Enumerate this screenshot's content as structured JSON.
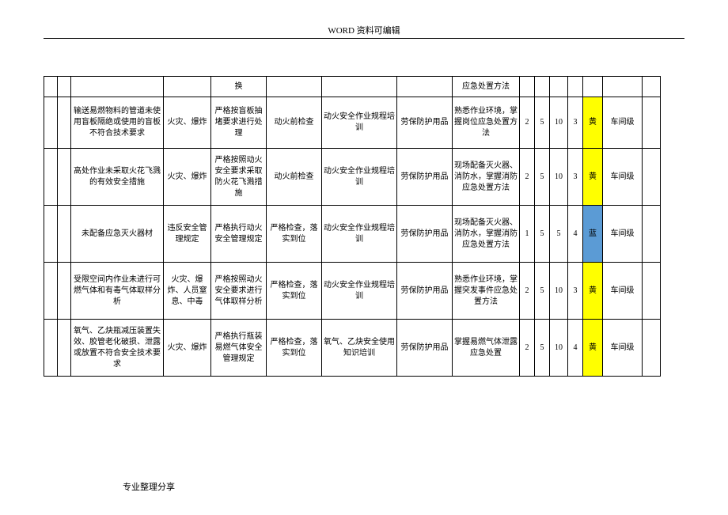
{
  "header": "WORD 资料可编辑",
  "footer": "专业整理分享",
  "colors": {
    "yellow": "#ffff00",
    "blue": "#5b9bd5"
  },
  "rows": [
    {
      "c2": "",
      "c3": "",
      "c4": "换",
      "c5": "",
      "c6": "",
      "c7": "",
      "c8": "应急处置方法",
      "c9": "",
      "c10": "",
      "c11": "",
      "c12": "",
      "c13": "",
      "c13_color": "",
      "c14": "",
      "c15": ""
    },
    {
      "c2": "输送易燃物料的管道未使用盲板隔绝或使用的盲板不符合技术要求",
      "c3": "火灾、爆炸",
      "c4": "严格按盲板抽堵要求进行处理",
      "c5": "动火前检查",
      "c6": "动火安全作业规程培训",
      "c7": "劳保防护用品",
      "c8": "熟悉作业环境，掌握岗位应急处置方法",
      "c9": "2",
      "c10": "5",
      "c11": "10",
      "c12": "3",
      "c13": "黄",
      "c13_color": "yellow",
      "c14": "车间级",
      "c15": ""
    },
    {
      "c2": "高处作业未采取火花飞溅的有效安全措施",
      "c3": "火灾、爆炸",
      "c4": "严格按照动火安全要求采取防火花飞溅措施",
      "c5": "动火前检查",
      "c6": "动火安全作业规程培训",
      "c7": "劳保防护用品",
      "c8": "现场配备灭火器、消防水，掌握消防应急处置方法",
      "c9": "2",
      "c10": "5",
      "c11": "10",
      "c12": "3",
      "c13": "黄",
      "c13_color": "yellow",
      "c14": "车间级",
      "c15": ""
    },
    {
      "c2": "未配备应急灭火器材",
      "c3": "违反安全管理规定",
      "c4": "严格执行动火安全管理规定",
      "c5": "严格检查，落实到位",
      "c6": "动火安全作业规程培训",
      "c7": "劳保防护用品",
      "c8": "现场配备灭火器、消防水，掌握消防应急处置方法",
      "c9": "1",
      "c10": "5",
      "c11": "5",
      "c12": "4",
      "c13": "蓝",
      "c13_color": "blue",
      "c14": "车间级",
      "c15": ""
    },
    {
      "c2": "受限空间内作业未进行可燃气体和有毒气体取样分析",
      "c3": "火灾、爆炸、人员窒息、中毒",
      "c4": "严格按照动火安全要求进行气体取样分析",
      "c5": "严格检查，落实到位",
      "c6": "动火安全作业规程培训",
      "c7": "劳保防护用品",
      "c8": "熟悉作业环境，掌握突发事件应急处置方法",
      "c9": "2",
      "c10": "5",
      "c11": "10",
      "c12": "3",
      "c13": "黄",
      "c13_color": "yellow",
      "c14": "车间级",
      "c15": ""
    },
    {
      "c2": "氧气、乙炔瓶减压装置失效、胶管老化破损、泄露或放置不符合安全技术要求",
      "c3": "火灾、爆炸",
      "c4": "严格执行瓶装易燃气体安全管理规定",
      "c5": "严格检查，落实到位",
      "c6": "氧气、乙炔安全使用知识培训",
      "c7": "劳保防护用品",
      "c8": "掌握易燃气体泄露应急处置",
      "c9": "2",
      "c10": "5",
      "c11": "10",
      "c12": "4",
      "c13": "黄",
      "c13_color": "yellow",
      "c14": "车间级",
      "c15": ""
    }
  ]
}
